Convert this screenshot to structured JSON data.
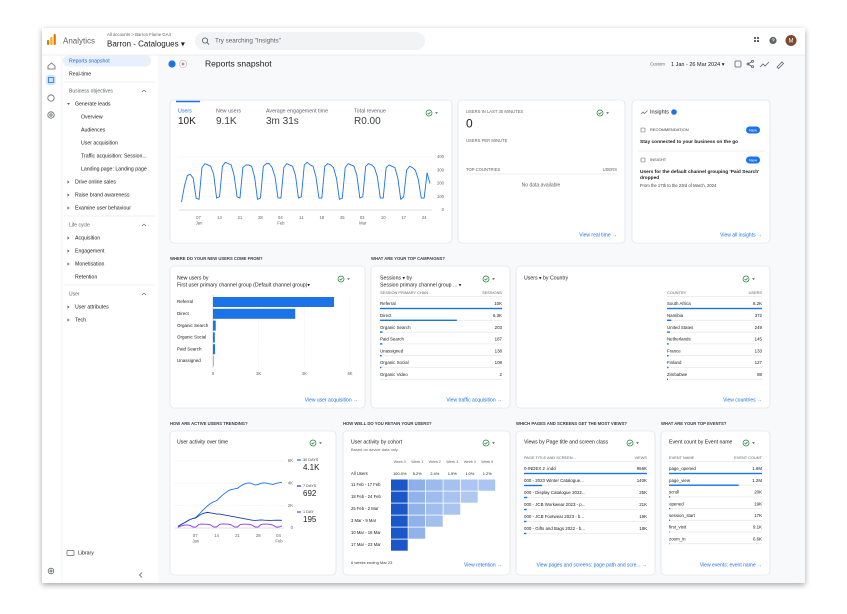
{
  "topbar": {
    "product": "Analytics",
    "breadcrumb": "All accounts > Barron Flume GA4",
    "property": "Barron - Catalogues ▾",
    "search_placeholder": "Try searching \"Insights\"",
    "avatar": "M"
  },
  "sidebar": {
    "items": [
      {
        "label": "Reports snapshot",
        "kind": "link",
        "active": true
      },
      {
        "label": "Real-time",
        "kind": "link"
      },
      {
        "label": "Business objectives",
        "kind": "section"
      },
      {
        "label": "Generate leads",
        "kind": "group",
        "open": true
      },
      {
        "label": "Overview",
        "kind": "item"
      },
      {
        "label": "Audiences",
        "kind": "item"
      },
      {
        "label": "User acquisition",
        "kind": "item"
      },
      {
        "label": "Traffic acquisition: Session...",
        "kind": "item"
      },
      {
        "label": "Landing page: Landing page",
        "kind": "item"
      },
      {
        "label": "Drive online sales",
        "kind": "group",
        "open": false
      },
      {
        "label": "Raise brand awareness",
        "kind": "group",
        "open": false
      },
      {
        "label": "Examine user behaviour",
        "kind": "group",
        "open": false
      },
      {
        "label": "Life cycle",
        "kind": "section"
      },
      {
        "label": "Acquisition",
        "kind": "group",
        "open": false
      },
      {
        "label": "Engagement",
        "kind": "group",
        "open": false
      },
      {
        "label": "Monetisation",
        "kind": "group",
        "open": false
      },
      {
        "label": "Retention",
        "kind": "group"
      },
      {
        "label": "User",
        "kind": "section"
      },
      {
        "label": "User attributes",
        "kind": "group",
        "open": false
      },
      {
        "label": "Tech",
        "kind": "group",
        "open": false
      }
    ],
    "library": "Library"
  },
  "header": {
    "title": "Reports snapshot",
    "date_label": "Custom",
    "date_range": "1 Jan - 26 Mar 2024 ▾"
  },
  "overview": {
    "metrics": [
      {
        "label": "Users",
        "value": "10K"
      },
      {
        "label": "New users",
        "value": "9.1K"
      },
      {
        "label": "Average engagement time",
        "value": "3m 31s"
      },
      {
        "label": "Total revenue",
        "value": "R0.00"
      }
    ],
    "chart": {
      "type": "line",
      "color": "#1a73e8",
      "grid": true,
      "categories": [
        null,
        null,
        null,
        null,
        null,
        null,
        "07 Jan",
        null,
        null,
        null,
        null,
        null,
        null,
        "14",
        null,
        null,
        null,
        null,
        null,
        null,
        "21",
        null,
        null,
        null,
        null,
        null,
        null,
        "28",
        null,
        null,
        null,
        null,
        null,
        null,
        "04 Feb",
        null,
        null,
        null,
        null,
        null,
        null,
        "11",
        null,
        null,
        null,
        null,
        null,
        null,
        "18",
        null,
        null,
        null,
        null,
        null,
        null,
        "25",
        null,
        null,
        null,
        null,
        null,
        null,
        "03 Mar",
        null,
        null,
        null,
        null,
        null,
        null,
        "10",
        null,
        null,
        null,
        null,
        null,
        null,
        "17",
        null,
        null,
        null,
        null,
        null,
        null,
        "24",
        null,
        null
      ],
      "values": [
        60,
        180,
        260,
        270,
        240,
        90,
        80,
        320,
        350,
        340,
        330,
        270,
        90,
        100,
        330,
        360,
        350,
        340,
        260,
        100,
        90,
        320,
        340,
        340,
        330,
        250,
        80,
        90,
        330,
        350,
        350,
        320,
        250,
        90,
        90,
        320,
        350,
        340,
        330,
        260,
        90,
        100,
        340,
        360,
        340,
        330,
        250,
        90,
        90,
        330,
        350,
        340,
        320,
        240,
        80,
        90,
        320,
        350,
        340,
        330,
        260,
        90,
        100,
        330,
        350,
        340,
        320,
        250,
        90,
        90,
        320,
        340,
        330,
        320,
        240,
        80,
        100,
        300,
        330,
        320,
        300,
        230,
        90,
        90,
        280,
        200
      ],
      "ylim": [
        0,
        400
      ],
      "yticks": [
        0,
        100,
        200,
        300,
        400
      ]
    }
  },
  "realtime": {
    "title": "USERS IN LAST 30 MINUTES",
    "value": "0",
    "subtitle": "USERS PER MINUTE",
    "columns": [
      "TOP COUNTRIES",
      "USERS"
    ],
    "empty": "No data available",
    "link": "View real time →"
  },
  "insights": {
    "title": "Insights",
    "items": [
      {
        "tag": "RECOMMENDATION",
        "badge": "New",
        "text": "Stay connected to your business on the go"
      },
      {
        "tag": "INSIGHT",
        "badge": "New",
        "text": "Users for the default channel grouping 'Paid Search' dropped",
        "detail": "From the 17th to the 23rd of March, 2024"
      }
    ],
    "link": "View all insights →"
  },
  "sections": [
    "WHERE DO YOUR NEW USERS COME FROM?",
    "WHAT ARE YOUR TOP CAMPAIGNS?",
    "HOW ARE ACTIVE USERS TRENDING?",
    "HOW WELL DO YOU RETAIN YOUR USERS?",
    "WHICH PAGES AND SCREENS GET THE MOST VIEWS?",
    "WHAT ARE YOUR TOP EVENTS?"
  ],
  "new_users": {
    "type": "bar",
    "title": "New users by",
    "subtitle": "First user primary channel group (Default channel group)▾",
    "color": "#1a73e8",
    "categories": [
      "Referral",
      "Direct",
      "Organic Search",
      "Organic Social",
      "Paid Search",
      "Unassigned"
    ],
    "values": [
      5300,
      3600,
      120,
      80,
      90,
      20
    ],
    "xlim": [
      0,
      6000
    ],
    "xticks": [
      0,
      {
        "value": 2000,
        "label": "2K"
      },
      {
        "value": 4000,
        "label": "4K"
      },
      {
        "value": 6000,
        "label": "6K"
      }
    ],
    "link": "View user acquisition →"
  },
  "campaigns": {
    "title": "Sessions ▾ by",
    "subtitle": "Session primary channel group ... ▾",
    "columns": [
      "SESSION PRIMARY CHAN...",
      "SESSIONS"
    ],
    "categories": [
      "Referral",
      "Direct",
      "Organic Search",
      "Paid Search",
      "Unassigned",
      "Organic Social",
      "Organic Video"
    ],
    "values": [
      10000,
      6300,
      203,
      187,
      138,
      108,
      2
    ],
    "value_labels": [
      "10K",
      "6.3K",
      "203",
      "187",
      "138",
      "108",
      "2"
    ],
    "link": "View traffic acquisition →"
  },
  "countries": {
    "title": "Users ▾ by Country",
    "columns": [
      "COUNTRY",
      "USERS"
    ],
    "categories": [
      "South Africa",
      "Namibia",
      "United States",
      "Netherlands",
      "France",
      "Finland",
      "Zimbabwe"
    ],
    "values": [
      8200,
      372,
      249,
      145,
      133,
      127,
      88
    ],
    "value_labels": [
      "8.2K",
      "372",
      "249",
      "145",
      "133",
      "127",
      "88"
    ],
    "link": "View countries →"
  },
  "active_users": {
    "type": "line",
    "title": "User activity over time",
    "grid": true,
    "categories": [
      null,
      null,
      null,
      null,
      null,
      null,
      "07 Jan",
      null,
      null,
      null,
      null,
      null,
      null,
      "14",
      null,
      null,
      null,
      null,
      null,
      null,
      "21",
      null,
      null,
      null,
      null,
      null,
      null,
      "28",
      null,
      null,
      null,
      null,
      null,
      null,
      "04 Feb",
      null
    ],
    "series": [
      {
        "name": "30 DAYS",
        "value_label": "4.1K",
        "color": "#1a73e8",
        "values": [
          150,
          300,
          450,
          600,
          750,
          850,
          950,
          1200,
          1500,
          1750,
          2000,
          2200,
          2350,
          2450,
          2700,
          2950,
          3150,
          3350,
          3450,
          3500,
          3550,
          3750,
          3900,
          4000,
          4050,
          3950,
          3850,
          3900,
          4000,
          4050,
          4000,
          3950,
          3900,
          4000,
          4050,
          4100
        ]
      },
      {
        "name": "7 DAYS",
        "value_label": "692",
        "color": "#1a3fa8",
        "values": [
          150,
          300,
          450,
          600,
          750,
          850,
          900,
          1100,
          1250,
          1350,
          1400,
          1350,
          1300,
          1250,
          1250,
          1200,
          1150,
          1100,
          1050,
          1000,
          950,
          900,
          850,
          800,
          750,
          700,
          680,
          700,
          720,
          700,
          690,
          680,
          690,
          700,
          695,
          692
        ]
      },
      {
        "name": "1 DAY",
        "value_label": "195",
        "color": "#9334e6",
        "values": [
          60,
          180,
          260,
          270,
          240,
          90,
          80,
          320,
          350,
          340,
          330,
          270,
          90,
          100,
          330,
          360,
          350,
          340,
          260,
          100,
          90,
          320,
          340,
          340,
          330,
          250,
          80,
          90,
          330,
          350,
          350,
          320,
          250,
          90,
          90,
          195
        ]
      }
    ],
    "ylim": [
      0,
      6000
    ],
    "yticks": [
      0,
      {
        "value": 2000,
        "label": "2K"
      },
      {
        "value": 4000,
        "label": "4K"
      },
      {
        "value": 6000,
        "label": "6K"
      }
    ]
  },
  "retention": {
    "title": "User activity by cohort",
    "subtitle": "Based on device data only",
    "columns": [
      "Week 0",
      "Week 1",
      "Week 2",
      "Week 3",
      "Week 4",
      "Week 5"
    ],
    "all_label": "All Users",
    "all_values": [
      "100.0%",
      "5.2%",
      "2.4%",
      "1.5%",
      "1.0%",
      "1.2%"
    ],
    "rows": [
      "11 Feb - 17 Feb",
      "18 Feb - 24 Feb",
      "25 Feb - 2 Mar",
      "3 Mar - 9 Mar",
      "10 Mar - 16 Mar",
      "17 Mar - 23 Mar"
    ],
    "cells": [
      [
        100,
        5.8,
        2.9,
        1.8,
        1.1,
        1.2
      ],
      [
        100,
        5.1,
        2.6,
        1.5,
        0.9
      ],
      [
        100,
        4.9,
        2.2,
        1.4
      ],
      [
        100,
        5.3,
        2.1
      ],
      [
        100,
        4.8
      ],
      [
        100
      ]
    ],
    "footer": "6 weeks ending Mar 23",
    "link": "View retention →"
  },
  "pages": {
    "title": "Views by Page title and screen class",
    "columns": [
      "PAGE TITLE AND SCREEN...",
      "VIEWS"
    ],
    "categories": [
      "0-INDEX 2 .indd",
      "000 - 2023 Winter Catalogue...",
      "000 - Display Catalogue 2022...",
      "000 - JCB Workwear 2023 - p...",
      "000 - JCB Footwear 2023 - b...",
      "000 - Gifts and Bags 2022 - b..."
    ],
    "values": [
      956000,
      140000,
      25000,
      21000,
      19000,
      18000
    ],
    "value_labels": [
      "956K",
      "140K",
      "25K",
      "21K",
      "19K",
      "18K"
    ],
    "link": "View pages and screens: page path and scre... →"
  },
  "events": {
    "title": "Event count by Event name",
    "columns": [
      "EVENT NAME",
      "EVENT COUNT"
    ],
    "categories": [
      "page_opened",
      "page_view",
      "scroll",
      "opened",
      "session_start",
      "first_visit",
      "zoom_in"
    ],
    "values": [
      1600000,
      1200000,
      20000,
      19000,
      17000,
      9100,
      6600
    ],
    "value_labels": [
      "1.6M",
      "1.2M",
      "20K",
      "19K",
      "17K",
      "9.1K",
      "6.6K"
    ],
    "link": "View events: event name →"
  }
}
